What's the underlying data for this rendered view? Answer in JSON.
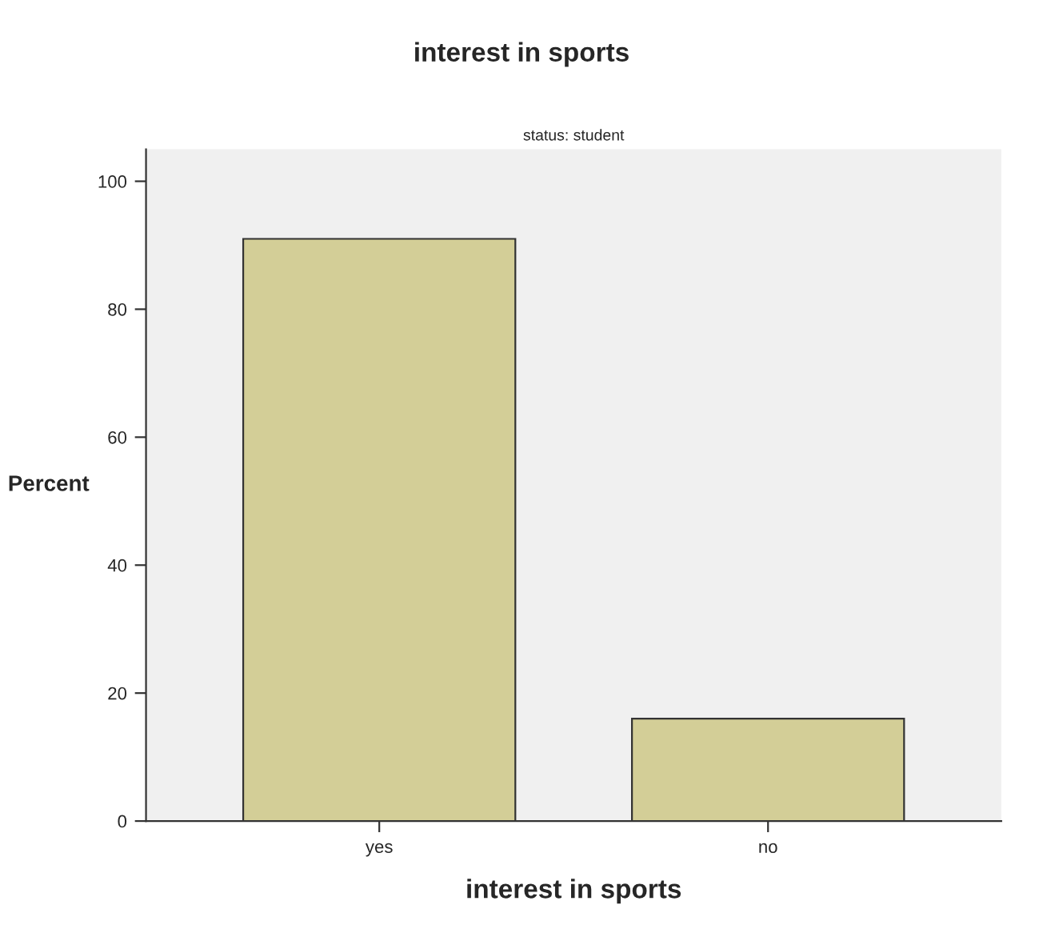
{
  "chart_data": {
    "type": "bar",
    "title": "interest in sports",
    "subtitle": "status: student",
    "xlabel": "interest in sports",
    "ylabel": "Percent",
    "categories": [
      "yes",
      "no"
    ],
    "values": [
      91,
      16
    ],
    "color": "#d3ce97",
    "ylim": [
      0,
      105
    ],
    "yticks": [
      0,
      20,
      40,
      60,
      80,
      100
    ],
    "grid": false,
    "legend": false
  }
}
